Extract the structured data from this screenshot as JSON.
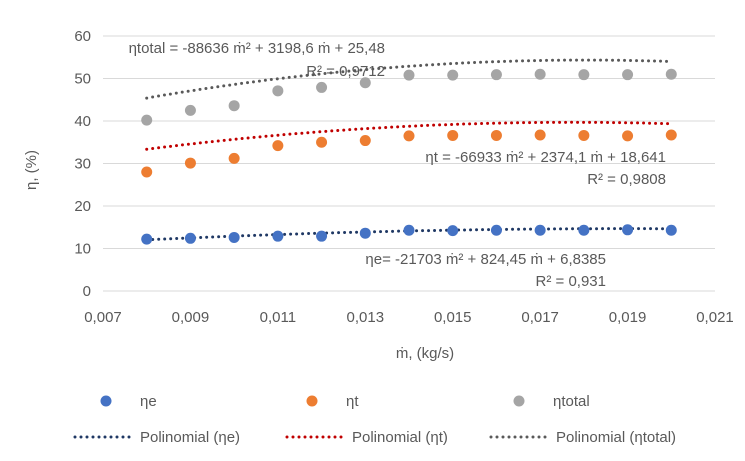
{
  "chart_data": {
    "type": "scatter",
    "xlabel": "ṁ, (kg/s)",
    "ylabel": "η, (%)",
    "xlim": [
      0.007,
      0.021
    ],
    "ylim": [
      0,
      60
    ],
    "x_ticks": [
      "0,007",
      "0,009",
      "0,011",
      "0,013",
      "0,015",
      "0,017",
      "0,019",
      "0,021"
    ],
    "y_ticks": [
      "0",
      "10",
      "20",
      "30",
      "40",
      "50",
      "60"
    ],
    "grid": "horizontal",
    "legend_position": "bottom",
    "x": [
      0.008,
      0.009,
      0.01,
      0.011,
      0.012,
      0.013,
      0.014,
      0.015,
      0.016,
      0.017,
      0.018,
      0.019,
      0.02
    ],
    "series": [
      {
        "name": "ηe",
        "color": "#4472c4",
        "values": [
          12.2,
          12.4,
          12.6,
          12.9,
          12.9,
          13.6,
          14.3,
          14.2,
          14.3,
          14.3,
          14.3,
          14.4,
          14.3
        ],
        "trend": {
          "name": "Polinomial (ηe)",
          "color": "#1f3864",
          "coef": [
            -21703,
            824.45,
            6.8385
          ],
          "equation": "ηe= -21703 ṁ² + 824,45 ṁ + 6,8385",
          "r2": "R² = 0,931"
        }
      },
      {
        "name": "ηt",
        "color": "#ed7d31",
        "values": [
          28.0,
          30.1,
          31.2,
          34.2,
          35.0,
          35.4,
          36.5,
          36.6,
          36.6,
          36.7,
          36.6,
          36.5,
          36.7
        ],
        "trend": {
          "name": "Polinomial (ηt)",
          "color": "#c00000",
          "coef": [
            -66933,
            2374.1,
            18.641
          ],
          "equation": "ηt = -66933 ṁ² + 2374,1 ṁ + 18,641",
          "r2": "R² = 0,9808"
        }
      },
      {
        "name": "ηtotal",
        "color": "#a5a5a5",
        "values": [
          40.2,
          42.5,
          43.6,
          47.1,
          47.9,
          49.0,
          50.8,
          50.8,
          50.9,
          51.0,
          50.9,
          50.9,
          51.0
        ],
        "trend": {
          "name": "Polinomial (ηtotal)",
          "color": "#595959",
          "coef": [
            -88636,
            3198.6,
            25.48
          ],
          "equation": "ηtotal = -88636 ṁ² + 3198,6 ṁ + 25,48",
          "r2": "R² = 0,9712"
        }
      }
    ]
  }
}
